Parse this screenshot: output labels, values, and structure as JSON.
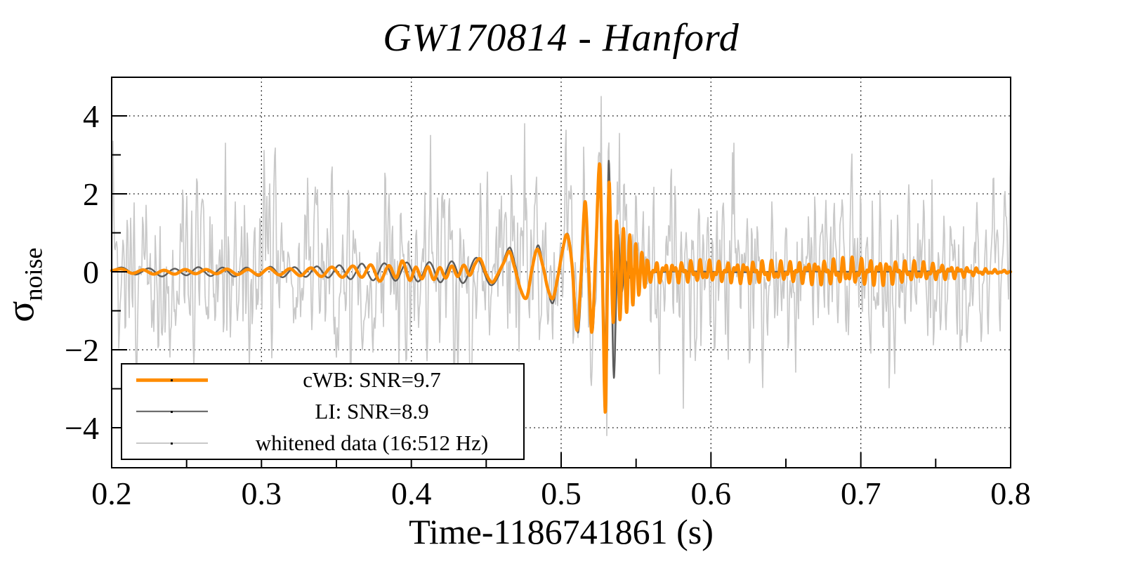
{
  "chart_data": {
    "type": "line",
    "title": "GW170814 - Hanford",
    "xlabel": "Time-1186741861 (s)",
    "ylabel": {
      "base": "σ",
      "subscript": "noise"
    },
    "xlim": [
      0.2,
      0.8
    ],
    "ylim": [
      -5,
      5
    ],
    "x_major_ticks": [
      0.2,
      0.3,
      0.4,
      0.5,
      0.6,
      0.7,
      0.8
    ],
    "x_tick_labels": [
      "0.2",
      "0.3",
      "0.4",
      "0.5",
      "0.6",
      "0.7",
      "0.8"
    ],
    "x_minor_step": 0.05,
    "y_major_ticks": [
      -4,
      -2,
      0,
      2,
      4
    ],
    "y_tick_labels": [
      "−4",
      "−2",
      "0",
      "2",
      "4"
    ],
    "y_minor_step": 1,
    "grid": {
      "style": "dotted",
      "x_lines": [
        0.3,
        0.4,
        0.5,
        0.6,
        0.7
      ],
      "y_lines": [
        -4,
        -2,
        0,
        2,
        4
      ]
    },
    "legend": {
      "position": "bottom-left",
      "entries": [
        {
          "label": "cWB: SNR=9.7",
          "color": "#ff8c00",
          "line_width": 4.5
        },
        {
          "label": "LI: SNR=8.9",
          "color": "#5c5c5c",
          "line_width": 2.5
        },
        {
          "label": "whitened data (16:512 Hz)",
          "color": "#c9c9c9",
          "line_width": 2
        }
      ]
    },
    "series": [
      {
        "name": "whitened data (16:512 Hz)",
        "color": "#c9c9c9",
        "line_width": 1.7,
        "generator": {
          "kind": "seeded-band-limited-noise-plus-signal",
          "seed": 814,
          "n_samples": 1281,
          "sigma": 1.1,
          "includes_signal": true,
          "clip": 4.85,
          "spikes": [
            [
              0.4757,
              3.8
            ],
            [
              0.5265,
              4.5
            ],
            [
              0.5305,
              -4.2
            ],
            [
              0.539,
              3.55
            ],
            [
              0.5815,
              -3.5
            ],
            [
              0.6155,
              3.3
            ],
            [
              0.276,
              3.3
            ],
            [
              0.413,
              3.5
            ]
          ]
        }
      },
      {
        "name": "LI: SNR=8.9",
        "color": "#5c5c5c",
        "line_width": 2.4,
        "keypoints": [
          [
            0.2,
            0.02
          ],
          [
            0.207,
            0.11
          ],
          [
            0.216,
            -0.07
          ],
          [
            0.225,
            0.09
          ],
          [
            0.2335,
            -0.12
          ],
          [
            0.242,
            0.08
          ],
          [
            0.25,
            -0.09
          ],
          [
            0.258,
            0.12
          ],
          [
            0.266,
            -0.11
          ],
          [
            0.274,
            0.11
          ],
          [
            0.282,
            -0.12
          ],
          [
            0.29,
            0.11
          ],
          [
            0.298,
            -0.11
          ],
          [
            0.306,
            0.13
          ],
          [
            0.314,
            -0.14
          ],
          [
            0.322,
            0.12
          ],
          [
            0.3295,
            -0.13
          ],
          [
            0.337,
            0.14
          ],
          [
            0.3445,
            -0.15
          ],
          [
            0.352,
            0.17
          ],
          [
            0.3595,
            -0.19
          ],
          [
            0.367,
            0.21
          ],
          [
            0.3745,
            -0.22
          ],
          [
            0.382,
            0.22
          ],
          [
            0.3895,
            -0.23
          ],
          [
            0.397,
            0.24
          ],
          [
            0.4045,
            -0.25
          ],
          [
            0.412,
            0.25
          ],
          [
            0.4195,
            -0.27
          ],
          [
            0.427,
            0.27
          ],
          [
            0.4345,
            -0.29
          ],
          [
            0.4435,
            0.36
          ],
          [
            0.4525,
            -0.33
          ],
          [
            0.458,
            -0.12
          ],
          [
            0.4655,
            0.62
          ],
          [
            0.4695,
            0.15
          ],
          [
            0.473,
            -0.42
          ],
          [
            0.477,
            -0.68
          ],
          [
            0.4808,
            0.05
          ],
          [
            0.4845,
            0.68
          ],
          [
            0.488,
            0.15
          ],
          [
            0.491,
            -0.45
          ],
          [
            0.4945,
            -0.8
          ],
          [
            0.498,
            -0.1
          ],
          [
            0.501,
            0.58
          ],
          [
            0.5045,
            0.97
          ],
          [
            0.5075,
            0.2
          ],
          [
            0.5112,
            -1.56
          ],
          [
            0.5138,
            -0.1
          ],
          [
            0.5163,
            1.78
          ],
          [
            0.5187,
            0.1
          ],
          [
            0.521,
            -1.52
          ],
          [
            0.5235,
            0.55
          ],
          [
            0.526,
            2.58
          ],
          [
            0.5278,
            -0.4
          ],
          [
            0.5292,
            -2.4
          ],
          [
            0.5305,
            0.2
          ],
          [
            0.5318,
            2.85
          ],
          [
            0.5335,
            0.0
          ],
          [
            0.5352,
            -2.72
          ],
          [
            0.5368,
            -0.6
          ],
          [
            0.538,
            0.95
          ],
          [
            0.5393,
            0.1
          ],
          [
            0.5405,
            -0.52
          ],
          [
            0.5428,
            0.28
          ],
          [
            0.545,
            -0.16
          ],
          [
            0.548,
            0.07
          ],
          [
            0.551,
            -0.04
          ],
          [
            0.555,
            0.02
          ],
          [
            0.56,
            -0.01
          ],
          [
            0.58,
            0.01
          ],
          [
            0.62,
            -0.01
          ],
          [
            0.66,
            0.01
          ],
          [
            0.7,
            0.0
          ],
          [
            0.74,
            0.01
          ],
          [
            0.78,
            0.0
          ],
          [
            0.8,
            0.0
          ]
        ]
      },
      {
        "name": "cWB: SNR=9.7",
        "color": "#ff8c00",
        "line_width": 4.5,
        "keypoints": [
          [
            0.2,
            0.03
          ],
          [
            0.207,
            0.07
          ],
          [
            0.214,
            -0.04
          ],
          [
            0.221,
            0.05
          ],
          [
            0.228,
            -0.06
          ],
          [
            0.235,
            0.04
          ],
          [
            0.242,
            -0.06
          ],
          [
            0.249,
            0.06
          ],
          [
            0.256,
            -0.05
          ],
          [
            0.263,
            0.06
          ],
          [
            0.27,
            -0.05
          ],
          [
            0.277,
            0.07
          ],
          [
            0.284,
            -0.07
          ],
          [
            0.291,
            0.06
          ],
          [
            0.298,
            -0.08
          ],
          [
            0.305,
            0.09
          ],
          [
            0.312,
            -0.08
          ],
          [
            0.319,
            0.08
          ],
          [
            0.326,
            -0.1
          ],
          [
            0.333,
            0.1
          ],
          [
            0.34,
            -0.12
          ],
          [
            0.347,
            0.12
          ],
          [
            0.354,
            -0.14
          ],
          [
            0.361,
            0.15
          ],
          [
            0.367,
            -0.14
          ],
          [
            0.373,
            0.18
          ],
          [
            0.379,
            -0.24
          ],
          [
            0.385,
            0.16
          ],
          [
            0.39,
            -0.15
          ],
          [
            0.394,
            0.28
          ],
          [
            0.399,
            -0.22
          ],
          [
            0.403,
            0.12
          ],
          [
            0.407,
            -0.18
          ],
          [
            0.411,
            0.13
          ],
          [
            0.415,
            -0.2
          ],
          [
            0.419,
            0.11
          ],
          [
            0.423,
            -0.16
          ],
          [
            0.427,
            0.15
          ],
          [
            0.431,
            -0.12
          ],
          [
            0.435,
            0.17
          ],
          [
            0.439,
            -0.09
          ],
          [
            0.4425,
            0.2
          ],
          [
            0.446,
            0.33
          ],
          [
            0.45,
            -0.06
          ],
          [
            0.454,
            -0.27
          ],
          [
            0.458,
            -0.04
          ],
          [
            0.462,
            0.26
          ],
          [
            0.4655,
            0.52
          ],
          [
            0.469,
            0.1
          ],
          [
            0.473,
            -0.46
          ],
          [
            0.477,
            -0.66
          ],
          [
            0.4805,
            0.06
          ],
          [
            0.484,
            0.58
          ],
          [
            0.488,
            0.12
          ],
          [
            0.491,
            -0.42
          ],
          [
            0.4945,
            -0.68
          ],
          [
            0.498,
            -0.08
          ],
          [
            0.501,
            0.56
          ],
          [
            0.504,
            0.95
          ],
          [
            0.5072,
            0.2
          ],
          [
            0.5105,
            -1.5
          ],
          [
            0.5133,
            -0.1
          ],
          [
            0.516,
            1.8
          ],
          [
            0.5183,
            0.1
          ],
          [
            0.5205,
            -1.55
          ],
          [
            0.5232,
            0.6
          ],
          [
            0.5258,
            2.75
          ],
          [
            0.5278,
            -0.6
          ],
          [
            0.5295,
            -3.62
          ],
          [
            0.5308,
            -0.5
          ],
          [
            0.532,
            2.3
          ],
          [
            0.5334,
            0.3
          ],
          [
            0.5348,
            -1.3
          ],
          [
            0.536,
            0.1
          ],
          [
            0.537,
            1.3
          ],
          [
            0.5382,
            0.0
          ],
          [
            0.5393,
            -1.22
          ],
          [
            0.5415,
            1.12
          ],
          [
            0.5437,
            -1.05
          ],
          [
            0.5458,
            0.95
          ],
          [
            0.5478,
            -0.85
          ],
          [
            0.5498,
            0.72
          ],
          [
            0.5518,
            -0.6
          ],
          [
            0.5538,
            0.5
          ],
          [
            0.5558,
            -0.4
          ],
          [
            0.5572,
            0.3
          ]
        ],
        "tail_ripple": {
          "t0": 0.5572,
          "t1": 0.8,
          "freqs_hz": [
            168,
            315
          ],
          "weights": [
            0.62,
            0.45
          ],
          "phases": [
            1.5708,
            0.4
          ],
          "amp_points": [
            [
              0.5572,
              0.3
            ],
            [
              0.57,
              0.26
            ],
            [
              0.59,
              0.3
            ],
            [
              0.61,
              0.27
            ],
            [
              0.63,
              0.3
            ],
            [
              0.65,
              0.26
            ],
            [
              0.67,
              0.32
            ],
            [
              0.695,
              0.36
            ],
            [
              0.715,
              0.33
            ],
            [
              0.735,
              0.27
            ],
            [
              0.755,
              0.2
            ],
            [
              0.77,
              0.13
            ],
            [
              0.785,
              0.07
            ],
            [
              0.8,
              0.03
            ]
          ]
        }
      }
    ]
  }
}
